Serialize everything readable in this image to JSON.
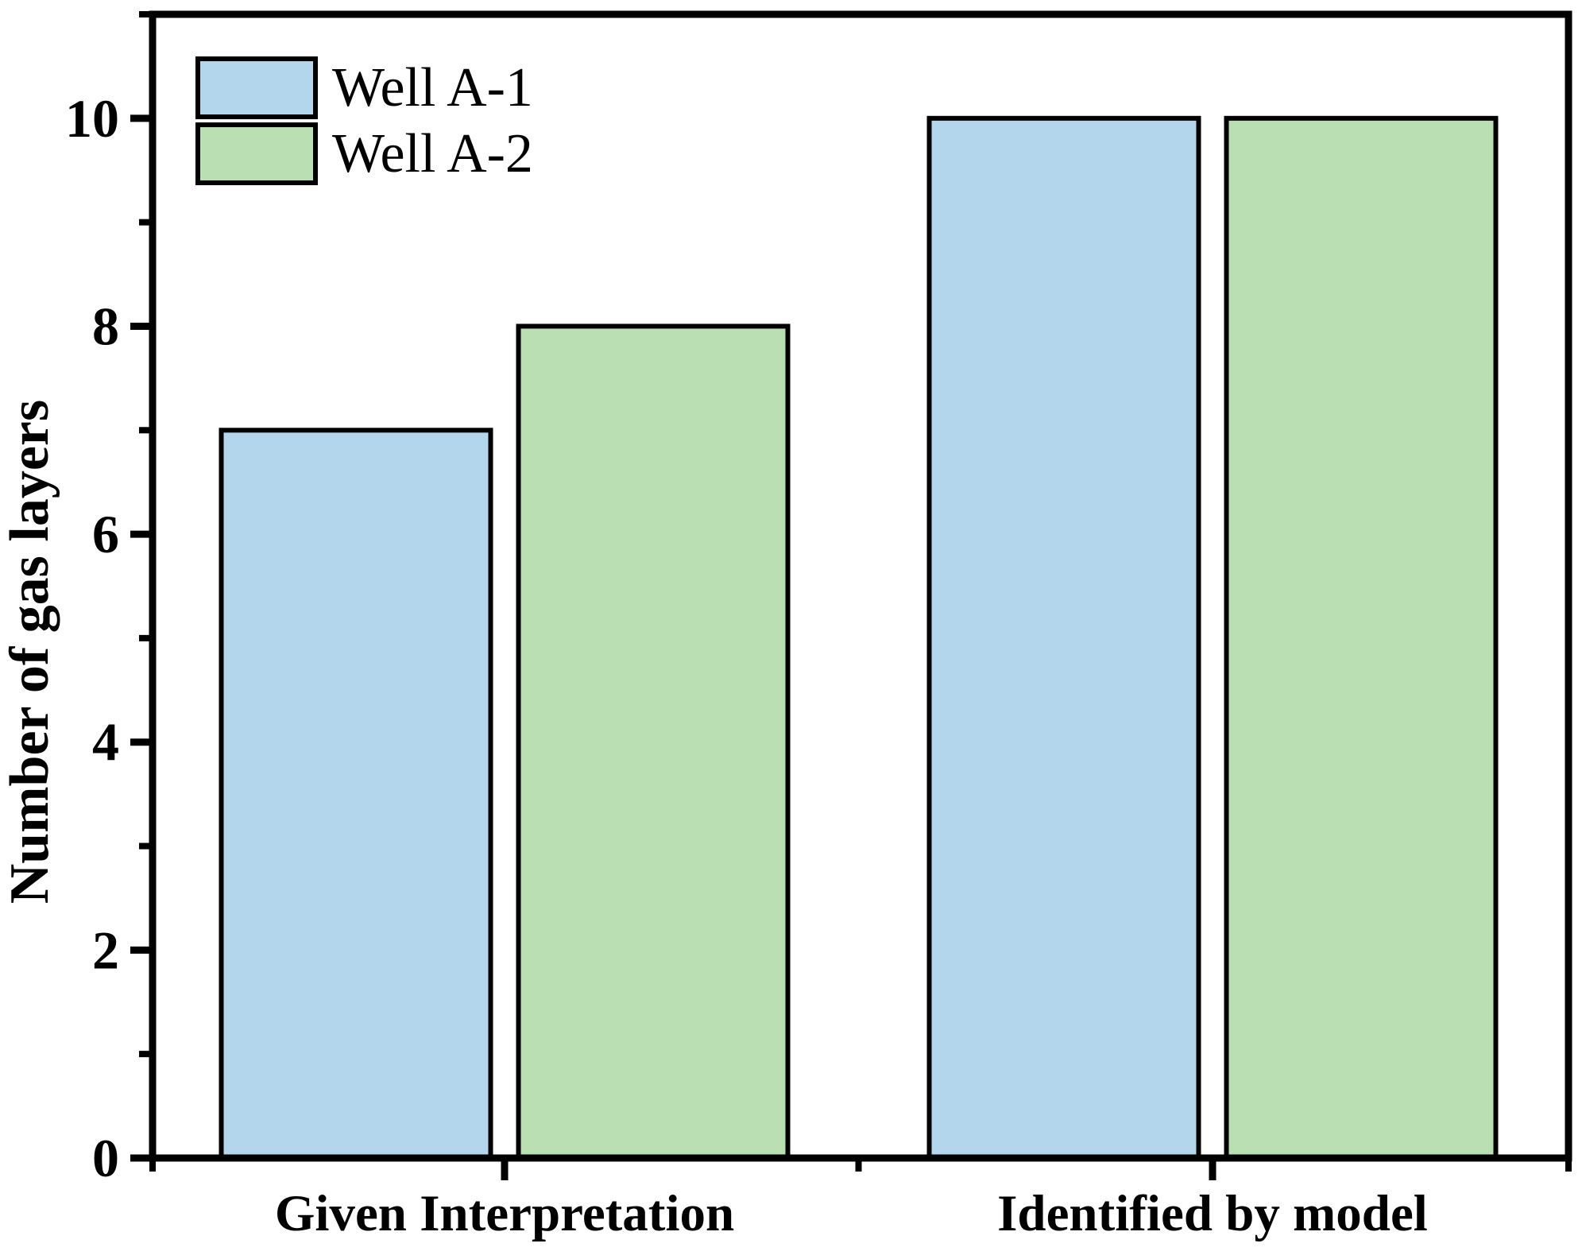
{
  "chart_data": {
    "type": "bar",
    "title": "",
    "categories": [
      "Given Interpretation",
      "Identified by model"
    ],
    "series": [
      {
        "name": "Well A-1",
        "color": "#b3d6ed",
        "values": [
          7,
          10
        ]
      },
      {
        "name": "Well A-2",
        "color": "#b9dfb2",
        "values": [
          8,
          10
        ]
      }
    ],
    "xlabel": "",
    "ylabel": "Number of gas layers",
    "ylim": [
      0,
      11
    ],
    "y_major_ticks": [
      0,
      2,
      4,
      6,
      8,
      10
    ],
    "y_minor_ticks": [
      1,
      3,
      5,
      7,
      9,
      11
    ],
    "grid": false,
    "legend_position": "top-left",
    "axis_color": "#000000",
    "bar_border_color": "#000000",
    "background_color": "#ffffff"
  }
}
